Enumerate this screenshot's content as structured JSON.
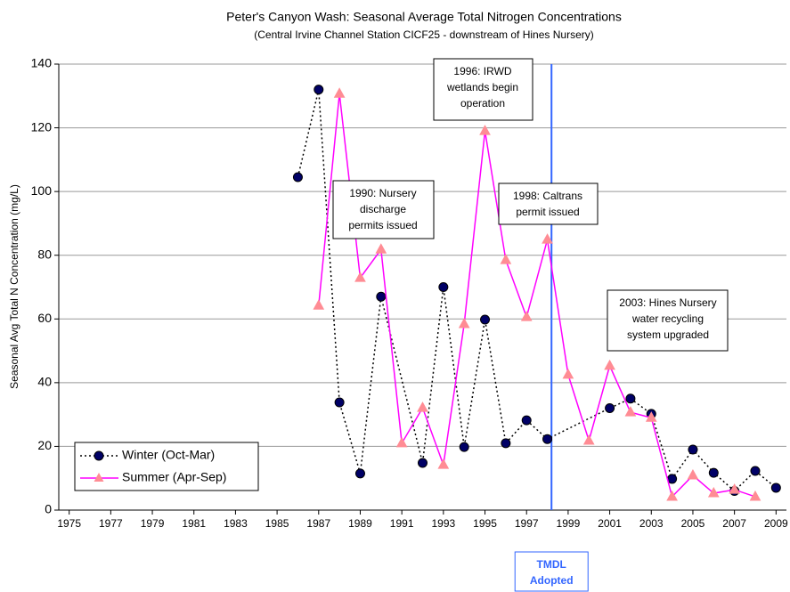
{
  "chart_data": {
    "type": "line",
    "title": "Peter's Canyon Wash:  Seasonal Average Total Nitrogen Concentrations",
    "subtitle": "(Central Irvine Channel Station CICF25 - downstream of Hines Nursery)",
    "y_label": "Seasonal Avg Total N Concentration (mg/L)",
    "xlim": [
      1974.5,
      2009.5
    ],
    "xticks": [
      1975,
      1977,
      1979,
      1981,
      1983,
      1985,
      1987,
      1989,
      1991,
      1993,
      1995,
      1997,
      1999,
      2001,
      2003,
      2005,
      2007,
      2009
    ],
    "ylim": [
      0,
      140
    ],
    "yticks": [
      0,
      20,
      40,
      60,
      80,
      100,
      120,
      140
    ],
    "grid": true,
    "legend": "lower left",
    "series": [
      {
        "name": "Winter (Oct-Mar)",
        "color": "#000066",
        "x": [
          1986,
          1987,
          1988,
          1989,
          1990,
          1992,
          1993,
          1994,
          1995,
          1996,
          1997,
          1998,
          2001,
          2002,
          2003,
          2004,
          2005,
          2006,
          2007,
          2008,
          2009
        ],
        "values": [
          104.5,
          132,
          33.8,
          11.5,
          67,
          14.8,
          70,
          19.8,
          59.8,
          21,
          28.2,
          22.3,
          32,
          35,
          30.2,
          9.8,
          19,
          11.7,
          6,
          12.3,
          7
        ]
      },
      {
        "name": "Summer (Apr-Sep)",
        "color": "#ff00ff",
        "x": [
          1987,
          1988,
          1989,
          1990,
          1991,
          1992,
          1993,
          1994,
          1995,
          1996,
          1997,
          1998,
          1999,
          2000,
          2001,
          2002,
          2003,
          2004,
          2005,
          2006,
          2007,
          2008
        ],
        "values": [
          64.2,
          130.7,
          72.9,
          81.8,
          21,
          32.1,
          14.2,
          58.4,
          119,
          78.5,
          60.6,
          84.9,
          42.5,
          21.8,
          45.3,
          30.7,
          29,
          4.2,
          10.9,
          5.3,
          6.4,
          4.2
        ]
      }
    ],
    "annotations": [
      {
        "lines": [
          "1990: Nursery",
          "discharge",
          "permits issued"
        ]
      },
      {
        "lines": [
          "1996: IRWD",
          "wetlands begin",
          "operation"
        ]
      },
      {
        "lines": [
          "1998: Caltrans",
          "permit issued"
        ]
      },
      {
        "lines": [
          "2003: Hines Nursery",
          "water recycling",
          "system upgraded"
        ]
      }
    ],
    "vertical_line": {
      "x": 1998.2,
      "color": "#3366ff",
      "lines": [
        "TMDL",
        "Adopted"
      ]
    }
  }
}
